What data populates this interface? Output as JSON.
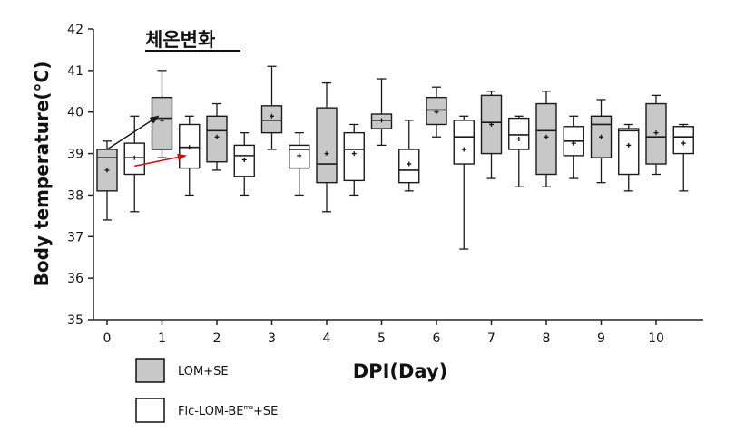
{
  "chart_data": {
    "type": "box",
    "title": "체온변화",
    "xlabel": "DPI(Day)",
    "ylabel": "Body temperature(°C)",
    "ylim": [
      35,
      42
    ],
    "yticks": [
      "35",
      "36",
      "37",
      "38",
      "39",
      "40",
      "41",
      "42"
    ],
    "xlim": [
      -0.3,
      10.8
    ],
    "xticks": [
      "0",
      "1",
      "2",
      "3",
      "4",
      "5",
      "6",
      "7",
      "8",
      "9",
      "10"
    ],
    "colors": {
      "filled": "#c8c8c8",
      "open": "#ffffff",
      "stroke": "#1a1a1a",
      "arrow_black": "#1a1a1a",
      "arrow_red": "#d01010"
    },
    "legend_position": "bottom-left",
    "series": [
      {
        "name": "LOM+SE",
        "fill": "#c8c8c8",
        "boxes": [
          {
            "x": 0,
            "min": 37.4,
            "q1": 38.1,
            "median": 38.9,
            "q3": 39.1,
            "max": 39.3,
            "mean": 38.6
          },
          {
            "x": 1,
            "min": 38.9,
            "q1": 39.1,
            "median": 39.85,
            "q3": 40.35,
            "max": 41.0,
            "mean": 39.8
          },
          {
            "x": 2,
            "min": 38.6,
            "q1": 38.8,
            "median": 39.55,
            "q3": 39.9,
            "max": 40.2,
            "mean": 39.4
          },
          {
            "x": 3,
            "min": 39.1,
            "q1": 39.5,
            "median": 39.8,
            "q3": 40.15,
            "max": 41.1,
            "mean": 39.9
          },
          {
            "x": 4,
            "min": 37.6,
            "q1": 38.3,
            "median": 38.75,
            "q3": 40.1,
            "max": 40.7,
            "mean": 39.0
          },
          {
            "x": 5,
            "min": 39.2,
            "q1": 39.6,
            "median": 39.8,
            "q3": 39.95,
            "max": 40.8,
            "mean": 39.8
          },
          {
            "x": 6,
            "min": 39.4,
            "q1": 39.7,
            "median": 40.05,
            "q3": 40.35,
            "max": 40.6,
            "mean": 40.0
          },
          {
            "x": 7,
            "min": 38.4,
            "q1": 39.0,
            "median": 39.75,
            "q3": 40.4,
            "max": 40.5,
            "mean": 39.7
          },
          {
            "x": 8,
            "min": 38.2,
            "q1": 38.5,
            "median": 39.55,
            "q3": 40.2,
            "max": 40.5,
            "mean": 39.4
          },
          {
            "x": 9,
            "min": 38.3,
            "q1": 38.9,
            "median": 39.7,
            "q3": 39.9,
            "max": 40.3,
            "mean": 39.4
          },
          {
            "x": 10,
            "min": 38.5,
            "q1": 38.75,
            "median": 39.4,
            "q3": 40.2,
            "max": 40.4,
            "mean": 39.5
          }
        ]
      },
      {
        "name": "Flc-LOM-BEms+SE",
        "fill": "#ffffff",
        "boxes": [
          {
            "x": 0.5,
            "min": 37.6,
            "q1": 38.5,
            "median": 38.9,
            "q3": 39.25,
            "max": 39.9,
            "mean": 38.9
          },
          {
            "x": 1.5,
            "min": 38.0,
            "q1": 38.65,
            "median": 39.15,
            "q3": 39.7,
            "max": 39.9,
            "mean": 39.15
          },
          {
            "x": 2.5,
            "min": 38.0,
            "q1": 38.45,
            "median": 38.95,
            "q3": 39.2,
            "max": 39.5,
            "mean": 38.85
          },
          {
            "x": 3.5,
            "min": 38.0,
            "q1": 38.65,
            "median": 39.1,
            "q3": 39.2,
            "max": 39.5,
            "mean": 38.95
          },
          {
            "x": 4.5,
            "min": 38.0,
            "q1": 38.35,
            "median": 39.1,
            "q3": 39.5,
            "max": 39.7,
            "mean": 39.0
          },
          {
            "x": 5.5,
            "min": 38.1,
            "q1": 38.3,
            "median": 38.6,
            "q3": 39.1,
            "max": 39.8,
            "mean": 38.75
          },
          {
            "x": 6.5,
            "min": 36.7,
            "q1": 38.75,
            "median": 39.4,
            "q3": 39.8,
            "max": 39.9,
            "mean": 39.1
          },
          {
            "x": 7.5,
            "min": 38.2,
            "q1": 39.1,
            "median": 39.45,
            "q3": 39.85,
            "max": 39.9,
            "mean": 39.35
          },
          {
            "x": 8.5,
            "min": 38.4,
            "q1": 38.95,
            "median": 39.3,
            "q3": 39.65,
            "max": 39.9,
            "mean": 39.25
          },
          {
            "x": 9.5,
            "min": 38.1,
            "q1": 38.5,
            "median": 39.55,
            "q3": 39.6,
            "max": 39.7,
            "mean": 39.2
          },
          {
            "x": 10.5,
            "min": 38.1,
            "q1": 39.0,
            "median": 39.4,
            "q3": 39.65,
            "max": 39.7,
            "mean": 39.25
          }
        ]
      }
    ],
    "annotations": [
      {
        "type": "arrow",
        "color": "black",
        "from": {
          "x": 0,
          "y": 39.1
        },
        "to": {
          "x": 1,
          "y": 39.9
        }
      },
      {
        "type": "arrow",
        "color": "red",
        "from": {
          "x": 0.5,
          "y": 38.7
        },
        "to": {
          "x": 1.5,
          "y": 38.95
        }
      }
    ]
  },
  "legend": [
    {
      "label": "LOM+SE"
    },
    {
      "label_main": "Flc-LOM-BE",
      "label_sup": "ms",
      "label_tail": "+SE"
    }
  ]
}
